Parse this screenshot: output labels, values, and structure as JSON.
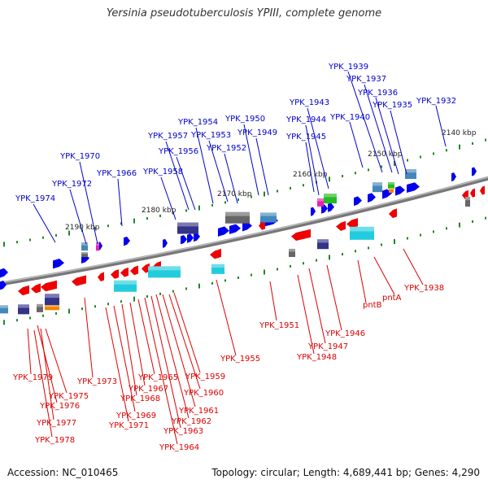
{
  "title": "Yersinia pseudotuberculosis YPIII, complete genome",
  "footer": {
    "accession": "Accession: NC_010465",
    "summary": "Topology: circular; Length: 4,689,441 bp; Genes: 4,290"
  },
  "colors": {
    "forward_label": "#0000cc",
    "reverse_label": "#dd0000",
    "forward_gene": "#0000ee",
    "reverse_gene": "#ee0000",
    "backbone": "#888888",
    "tick": "#228822",
    "rna_cyan": "#22ccdd",
    "rna_steel": "#4488bb",
    "rna_purple": "#333388",
    "rna_gray": "#666666",
    "rna_green": "#22bb22",
    "rna_magenta": "#ee22aa",
    "rna_orange": "#ee8800"
  },
  "scale_labels": [
    "2140 kbp",
    "2150 kbp",
    "2160 kbp",
    "2170 kbp",
    "2180 kbp",
    "2190 kbp"
  ],
  "forward_labels": [
    "YPK_1939",
    "YPK_1937",
    "YPK_1936",
    "YPK_1935",
    "YPK_1932",
    "YPK_1943",
    "YPK_1944",
    "YPK_1940",
    "YPK_1945",
    "YPK_1950",
    "YPK_1954",
    "YPK_1949",
    "YPK_1957",
    "YPK_1953",
    "YPK_1956",
    "YPK_1952",
    "YPK_1970",
    "YPK_1958",
    "YPK_1966",
    "YPK_1972",
    "YPK_1974"
  ],
  "reverse_labels": [
    "YPK_1938",
    "pntA",
    "pntB",
    "YPK_1951",
    "YPK_1946",
    "YPK_1947",
    "YPK_1948",
    "YPK_1955",
    "YPK_1959",
    "YPK_1960",
    "YPK_1961",
    "YPK_1962",
    "YPK_1963",
    "YPK_1964",
    "YPK_1965",
    "YPK_1967",
    "YPK_1968",
    "YPK_1969",
    "YPK_1971",
    "YPK_1973",
    "YPK_1979",
    "YPK_1975",
    "YPK_1976",
    "YPK_1977",
    "YPK_1978"
  ]
}
